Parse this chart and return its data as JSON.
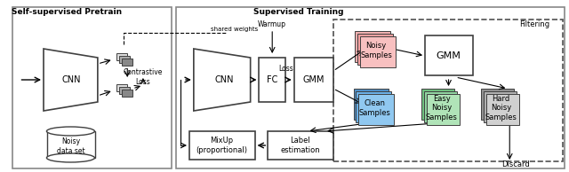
{
  "bg_color": "#ffffff",
  "title_pretrain": "Self-supervised Pretrain",
  "title_supervised": "Supervised Training",
  "title_filtering": "Filtering",
  "text_discard": "Discard",
  "text_shared_weights": "shared weights",
  "text_warmup": "Warmup",
  "text_loss": "Loss",
  "text_contrastive_loss": "Contrastive\nLoss",
  "text_noisy_dataset": "Noisy\ndata set",
  "text_cnn1": "CNN",
  "text_cnn2": "CNN",
  "text_fc": "FC",
  "text_gmm1": "GMM",
  "text_gmm2": "GMM",
  "text_noisy_samples": "Noisy\nSamples",
  "text_clean_samples": "Clean\nSamples",
  "text_easy_noisy": "Easy\nNoisy\nSamples",
  "text_hard_noisy": "Hard\nNoisy\nSamples",
  "text_mixup": "MixUp\n(proportional)",
  "text_label_est": "Label\nestimation",
  "color_noisy": "#f5a0a0",
  "color_clean": "#6ab0e8",
  "color_easy_noisy": "#90d4a0",
  "color_hard_noisy": "#c0c0c0",
  "color_box_outline": "#404040",
  "color_dashed_box": "#404040",
  "color_pretrain_box": "#d0d0d0"
}
